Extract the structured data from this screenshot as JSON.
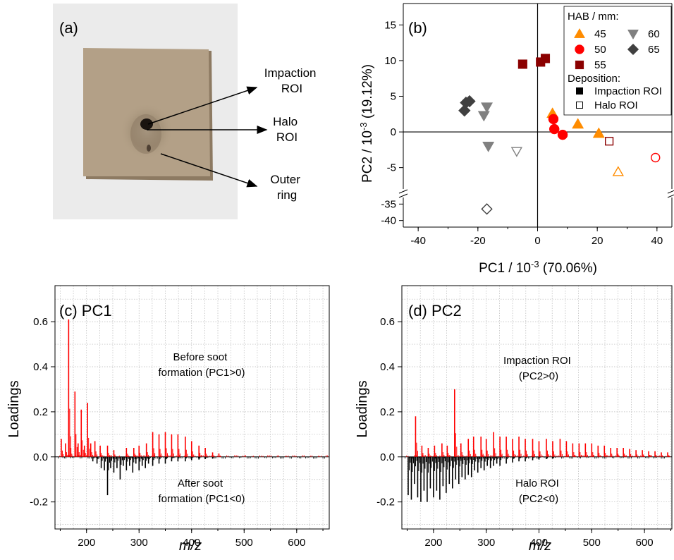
{
  "chart_data": [
    {
      "panel": "a",
      "type": "photo",
      "label": "(a)",
      "annotations": [
        {
          "id": "impaction",
          "lines": [
            "Impaction",
            "ROI"
          ]
        },
        {
          "id": "halo",
          "lines": [
            "Halo",
            "ROI"
          ]
        },
        {
          "id": "outer",
          "lines": [
            "Outer",
            "ring"
          ]
        }
      ],
      "colors": {
        "background": "#ebebeb",
        "plate": "#b3a087",
        "plate_edge": "#8d7a62",
        "spot": "#1a1410"
      }
    },
    {
      "panel": "b",
      "type": "scatter",
      "label": "(b)",
      "xlabel": "PC1 / 10",
      "xlabel_sup": "-3",
      "xlabel_rest": " (70.06%)",
      "ylabel": "PC2 / 10",
      "ylabel_sup": "-3",
      "ylabel_rest": " (19.12%)",
      "xlim": [
        -45,
        45
      ],
      "ylim_upper": [
        -8,
        18
      ],
      "ylim_lower": [
        -42,
        -33
      ],
      "xticks": [
        "-40",
        "-20",
        "0",
        "20",
        "40"
      ],
      "xtick_values": [
        -40,
        -20,
        0,
        20,
        40
      ],
      "yticks_upper": [
        "15",
        "10",
        "5",
        "0",
        "-5"
      ],
      "ytick_values_upper": [
        15,
        10,
        5,
        0,
        -5
      ],
      "yticks_lower": [
        "-35",
        "-40"
      ],
      "ytick_values_lower": [
        -35,
        -40
      ],
      "legend": {
        "title": "HAB / mm:",
        "entries": [
          {
            "label": "45",
            "marker": "triangle-up",
            "color": "#ff8c00"
          },
          {
            "label": "50",
            "marker": "circle",
            "color": "#ff0000"
          },
          {
            "label": "55",
            "marker": "square",
            "color": "#8b0000"
          },
          {
            "label": "60",
            "marker": "triangle-down",
            "color": "#808080"
          },
          {
            "label": "65",
            "marker": "diamond",
            "color": "#404040"
          }
        ],
        "deposition_title": "Deposition:",
        "deposition": [
          {
            "label": "Impaction ROI",
            "filled": true
          },
          {
            "label": "Halo ROI",
            "filled": false
          }
        ]
      },
      "series": [
        {
          "name": "45",
          "marker": "triangle-up",
          "color": "#ff8c00",
          "impaction": [
            [
              5,
              2.6
            ],
            [
              13.5,
              1.1
            ],
            [
              20.5,
              -0.2
            ]
          ],
          "halo": [
            [
              27,
              -5.6
            ]
          ]
        },
        {
          "name": "50",
          "marker": "circle",
          "color": "#ff0000",
          "impaction": [
            [
              5.3,
              1.8
            ],
            [
              5.6,
              0.4
            ],
            [
              8.4,
              -0.4
            ]
          ],
          "halo": [
            [
              39.5,
              -3.6
            ]
          ]
        },
        {
          "name": "55",
          "marker": "square",
          "color": "#8b0000",
          "impaction": [
            [
              -5,
              9.5
            ],
            [
              1,
              9.8
            ],
            [
              2.6,
              10.3
            ]
          ],
          "halo": [
            [
              24,
              -1.3
            ]
          ]
        },
        {
          "name": "60",
          "marker": "triangle-down",
          "color": "#808080",
          "impaction": [
            [
              -17,
              3.5
            ],
            [
              -18,
              2.3
            ],
            [
              -16.5,
              -2
            ]
          ],
          "halo": [
            [
              -7,
              -2.7
            ]
          ]
        },
        {
          "name": "65",
          "marker": "diamond",
          "color": "#404040",
          "impaction": [
            [
              -24.5,
              3
            ],
            [
              -24,
              4.1
            ],
            [
              -22.8,
              4.3
            ]
          ],
          "halo": [
            [
              -17,
              -36.5
            ]
          ]
        }
      ]
    },
    {
      "panel": "c",
      "type": "bar",
      "label": "(c) PC1",
      "xlabel": "m/z",
      "ylabel": "Loadings",
      "xlim": [
        140,
        662
      ],
      "ylim": [
        -0.32,
        0.76
      ],
      "xticks": [
        "200",
        "300",
        "400",
        "500",
        "600"
      ],
      "xtick_values": [
        200,
        300,
        400,
        500,
        600
      ],
      "yticks": [
        "0.6",
        "0.4",
        "0.2",
        "0.0",
        "-0.2"
      ],
      "ytick_values": [
        0.6,
        0.4,
        0.2,
        0.0,
        -0.2
      ],
      "positive_color": "#ff0000",
      "negative_color": "#000000",
      "annotations": [
        {
          "id": "before",
          "lines": [
            "Before soot",
            "formation (PC1>0)"
          ]
        },
        {
          "id": "after",
          "lines": [
            "After soot",
            "formation (PC1<0)"
          ]
        }
      ],
      "peaks": [
        [
          152,
          0.08
        ],
        [
          160,
          0.06
        ],
        [
          166,
          0.61
        ],
        [
          170,
          0.04
        ],
        [
          178,
          0.29
        ],
        [
          184,
          0.06
        ],
        [
          190,
          0.21
        ],
        [
          196,
          0.05
        ],
        [
          202,
          0.24
        ],
        [
          208,
          0.06
        ],
        [
          216,
          0.07
        ],
        [
          226,
          0.05
        ],
        [
          240,
          0.05
        ],
        [
          252,
          0.03
        ],
        [
          276,
          0.04
        ],
        [
          290,
          0.04
        ],
        [
          300,
          0.05
        ],
        [
          314,
          0.06
        ],
        [
          326,
          0.11
        ],
        [
          338,
          0.1
        ],
        [
          350,
          0.11
        ],
        [
          362,
          0.1
        ],
        [
          374,
          0.1
        ],
        [
          388,
          0.09
        ],
        [
          400,
          0.07
        ],
        [
          414,
          0.05
        ],
        [
          426,
          0.04
        ],
        [
          440,
          0.02
        ],
        [
          452,
          0.015
        ],
        [
          212,
          -0.02
        ],
        [
          220,
          -0.03
        ],
        [
          228,
          -0.05
        ],
        [
          234,
          -0.06
        ],
        [
          240,
          -0.17
        ],
        [
          246,
          -0.05
        ],
        [
          252,
          -0.07
        ],
        [
          258,
          -0.05
        ],
        [
          264,
          -0.1
        ],
        [
          270,
          -0.04
        ],
        [
          276,
          -0.06
        ],
        [
          282,
          -0.04
        ],
        [
          288,
          -0.07
        ],
        [
          294,
          -0.03
        ],
        [
          300,
          -0.06
        ],
        [
          306,
          -0.04
        ],
        [
          312,
          -0.05
        ],
        [
          318,
          -0.03
        ],
        [
          326,
          -0.04
        ],
        [
          338,
          -0.03
        ],
        [
          350,
          -0.03
        ],
        [
          362,
          -0.02
        ],
        [
          374,
          -0.02
        ],
        [
          388,
          -0.02
        ],
        [
          400,
          -0.015
        ],
        [
          414,
          -0.012
        ],
        [
          426,
          -0.01
        ],
        [
          440,
          -0.008
        ]
      ]
    },
    {
      "panel": "d",
      "type": "bar",
      "label": "(d) PC2",
      "xlabel": "m/z",
      "ylabel": "Loadings",
      "xlim": [
        140,
        652
      ],
      "ylim": [
        -0.32,
        0.76
      ],
      "xticks": [
        "200",
        "300",
        "400",
        "500",
        "600"
      ],
      "xtick_values": [
        200,
        300,
        400,
        500,
        600
      ],
      "yticks": [
        "0.6",
        "0.4",
        "0.2",
        "0.0",
        "-0.2"
      ],
      "ytick_values": [
        0.6,
        0.4,
        0.2,
        0.0,
        -0.2
      ],
      "positive_color": "#ff0000",
      "negative_color": "#000000",
      "annotations": [
        {
          "id": "impaction",
          "lines": [
            "Impaction ROI",
            "(PC2>0)"
          ]
        },
        {
          "id": "halo",
          "lines": [
            "Halo ROI",
            "(PC2<0)"
          ]
        }
      ],
      "peaks": [
        [
          166,
          0.18
        ],
        [
          178,
          0.05
        ],
        [
          190,
          0.04
        ],
        [
          202,
          0.05
        ],
        [
          216,
          0.06
        ],
        [
          226,
          0.05
        ],
        [
          240,
          0.3
        ],
        [
          252,
          0.06
        ],
        [
          266,
          0.08
        ],
        [
          276,
          0.09
        ],
        [
          290,
          0.09
        ],
        [
          300,
          0.08
        ],
        [
          314,
          0.11
        ],
        [
          326,
          0.09
        ],
        [
          338,
          0.09
        ],
        [
          350,
          0.08
        ],
        [
          362,
          0.09
        ],
        [
          374,
          0.08
        ],
        [
          388,
          0.08
        ],
        [
          400,
          0.07
        ],
        [
          414,
          0.08
        ],
        [
          426,
          0.07
        ],
        [
          440,
          0.08
        ],
        [
          452,
          0.07
        ],
        [
          464,
          0.06
        ],
        [
          476,
          0.06
        ],
        [
          488,
          0.06
        ],
        [
          500,
          0.06
        ],
        [
          512,
          0.05
        ],
        [
          524,
          0.05
        ],
        [
          536,
          0.04
        ],
        [
          548,
          0.04
        ],
        [
          560,
          0.04
        ],
        [
          572,
          0.035
        ],
        [
          584,
          0.03
        ],
        [
          596,
          0.03
        ],
        [
          608,
          0.025
        ],
        [
          620,
          0.025
        ],
        [
          632,
          0.02
        ],
        [
          644,
          0.02
        ],
        [
          152,
          -0.17
        ],
        [
          158,
          -0.19
        ],
        [
          164,
          -0.12
        ],
        [
          170,
          -0.18
        ],
        [
          176,
          -0.2
        ],
        [
          182,
          -0.15
        ],
        [
          188,
          -0.2
        ],
        [
          194,
          -0.14
        ],
        [
          200,
          -0.18
        ],
        [
          206,
          -0.15
        ],
        [
          212,
          -0.19
        ],
        [
          218,
          -0.13
        ],
        [
          224,
          -0.16
        ],
        [
          230,
          -0.12
        ],
        [
          236,
          -0.14
        ],
        [
          242,
          -0.1
        ],
        [
          248,
          -0.12
        ],
        [
          254,
          -0.09
        ],
        [
          260,
          -0.1
        ],
        [
          266,
          -0.08
        ],
        [
          272,
          -0.09
        ],
        [
          278,
          -0.06
        ],
        [
          284,
          -0.07
        ],
        [
          290,
          -0.05
        ],
        [
          296,
          -0.06
        ],
        [
          302,
          -0.04
        ],
        [
          308,
          -0.05
        ],
        [
          314,
          -0.04
        ],
        [
          320,
          -0.03
        ],
        [
          326,
          -0.04
        ],
        [
          338,
          -0.03
        ],
        [
          350,
          -0.025
        ],
        [
          362,
          -0.02
        ],
        [
          374,
          -0.02
        ],
        [
          388,
          -0.015
        ],
        [
          400,
          -0.012
        ],
        [
          414,
          -0.01
        ],
        [
          426,
          -0.008
        ]
      ]
    }
  ]
}
